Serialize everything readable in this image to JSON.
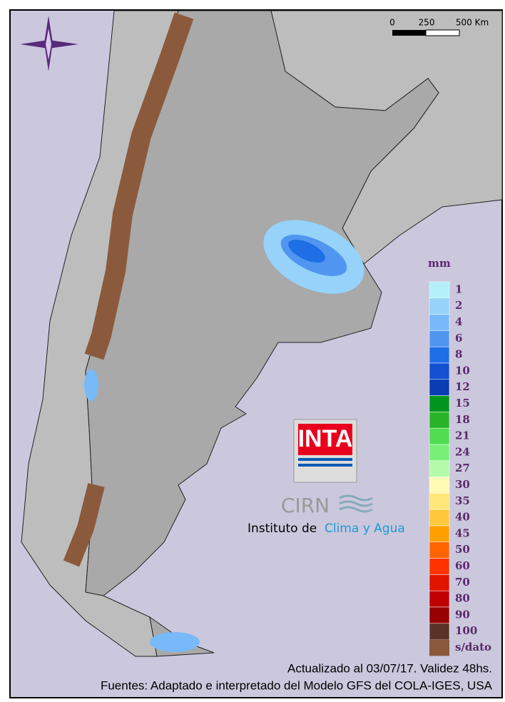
{
  "scale_bar": {
    "labels": [
      "0",
      "250",
      "500 Km"
    ]
  },
  "legend": {
    "unit": "mm",
    "classes": [
      1,
      2,
      4,
      6,
      8,
      10,
      12,
      15,
      18,
      21,
      24,
      27,
      30,
      35,
      40,
      45,
      50,
      60,
      70,
      80,
      90,
      100
    ],
    "colors": [
      "#b4f0fa",
      "#96d2fa",
      "#78b9fa",
      "#5096f0",
      "#1e6ee6",
      "#1450d2",
      "#0a3cb4",
      "#00961e",
      "#28b428",
      "#50dc50",
      "#78f078",
      "#b4faaa",
      "#fffab4",
      "#ffe678",
      "#ffc83c",
      "#ffa000",
      "#ff6400",
      "#ff3200",
      "#e11400",
      "#c00000",
      "#960000",
      "#5a3228"
    ],
    "nodata": {
      "label": "s/dato",
      "color": "#8b5a3c"
    }
  },
  "logo": {
    "inta": "INTA",
    "cirn": "CIRN",
    "institute_prefix": "Instituto de",
    "institute_name": "Clima y Agua"
  },
  "footer": {
    "updated": "Actualizado al 03/07/17. Validez 48hs.",
    "sources": "Fuentes: Adaptado e interpretado del Modelo GFS del COLA-IGES, USA"
  }
}
